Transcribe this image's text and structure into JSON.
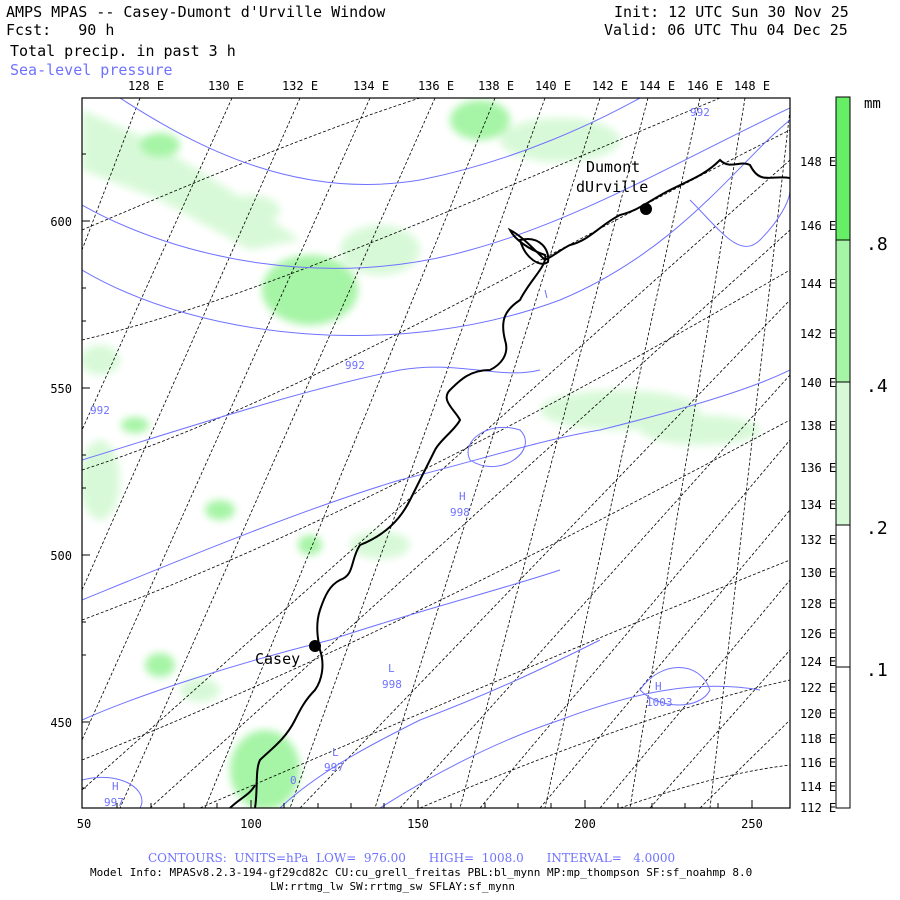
{
  "header": {
    "title": "AMPS MPAS -- Casey-Dumont d'Urville Window",
    "fcst": "Fcst:   90 h",
    "init": "Init: 12 UTC Sun 30 Nov 25",
    "valid": "Valid: 06 UTC Thu 04 Dec 25",
    "field1": "Total precip. in past 3 h",
    "field2": "Sea-level pressure"
  },
  "top_lon_labels": [
    "128 E",
    "130 E",
    "132 E",
    "134 E",
    "136 E",
    "138 E",
    "140 E",
    "142 E",
    "144 E",
    "146 E",
    "148 E"
  ],
  "right_lon_labels": [
    "148 E",
    "146 E",
    "144 E",
    "142 E",
    "140 E",
    "138 E",
    "136 E",
    "134 E",
    "132 E",
    "130 E",
    "128 E",
    "126 E",
    "124 E",
    "122 E",
    "120 E",
    "118 E",
    "116 E",
    "114 E",
    "112 E"
  ],
  "x_axis_labels": [
    "50",
    "100",
    "150",
    "200",
    "250"
  ],
  "y_axis_labels": [
    "600",
    "550",
    "500",
    "450"
  ],
  "stations": [
    {
      "name1": "Dumont",
      "name2": "dUrville"
    },
    {
      "name1": "Casey",
      "name2": ""
    }
  ],
  "pressure_labels": [
    {
      "text": "992"
    },
    {
      "text": "992"
    },
    {
      "text": "992"
    },
    {
      "text": "H"
    },
    {
      "text": "998"
    },
    {
      "text": "L"
    },
    {
      "text": "998"
    },
    {
      "text": "L"
    },
    {
      "text": "997"
    },
    {
      "text": "H"
    },
    {
      "text": "997"
    },
    {
      "text": "H"
    },
    {
      "text": "1003"
    },
    {
      "text": "0"
    }
  ],
  "colorbar": {
    "unit": "mm",
    "labels": [
      ".8",
      ".4",
      ".2",
      ".1"
    ],
    "colors": [
      "#66ee66",
      "#a6f4a6",
      "#d8f9d8",
      "#ffffff"
    ]
  },
  "footer": {
    "contours": "CONTOURS:  UNITS=hPa  LOW=  976.00      HIGH=  1008.0      INTERVAL=   4.0000",
    "model1": "Model Info: MPASv8.2.3-194-gf29cd82c CU:cu_grell_freitas PBL:bl_mynn MP:mp_thompson SF:sf_noahmp 8.0",
    "model2": "LW:rrtmg_lw SW:rrtmg_sw SFLAY:sf_mynn"
  },
  "colors": {
    "pressure": "#6f72ff",
    "coast": "#000000",
    "grid": "#000000"
  }
}
